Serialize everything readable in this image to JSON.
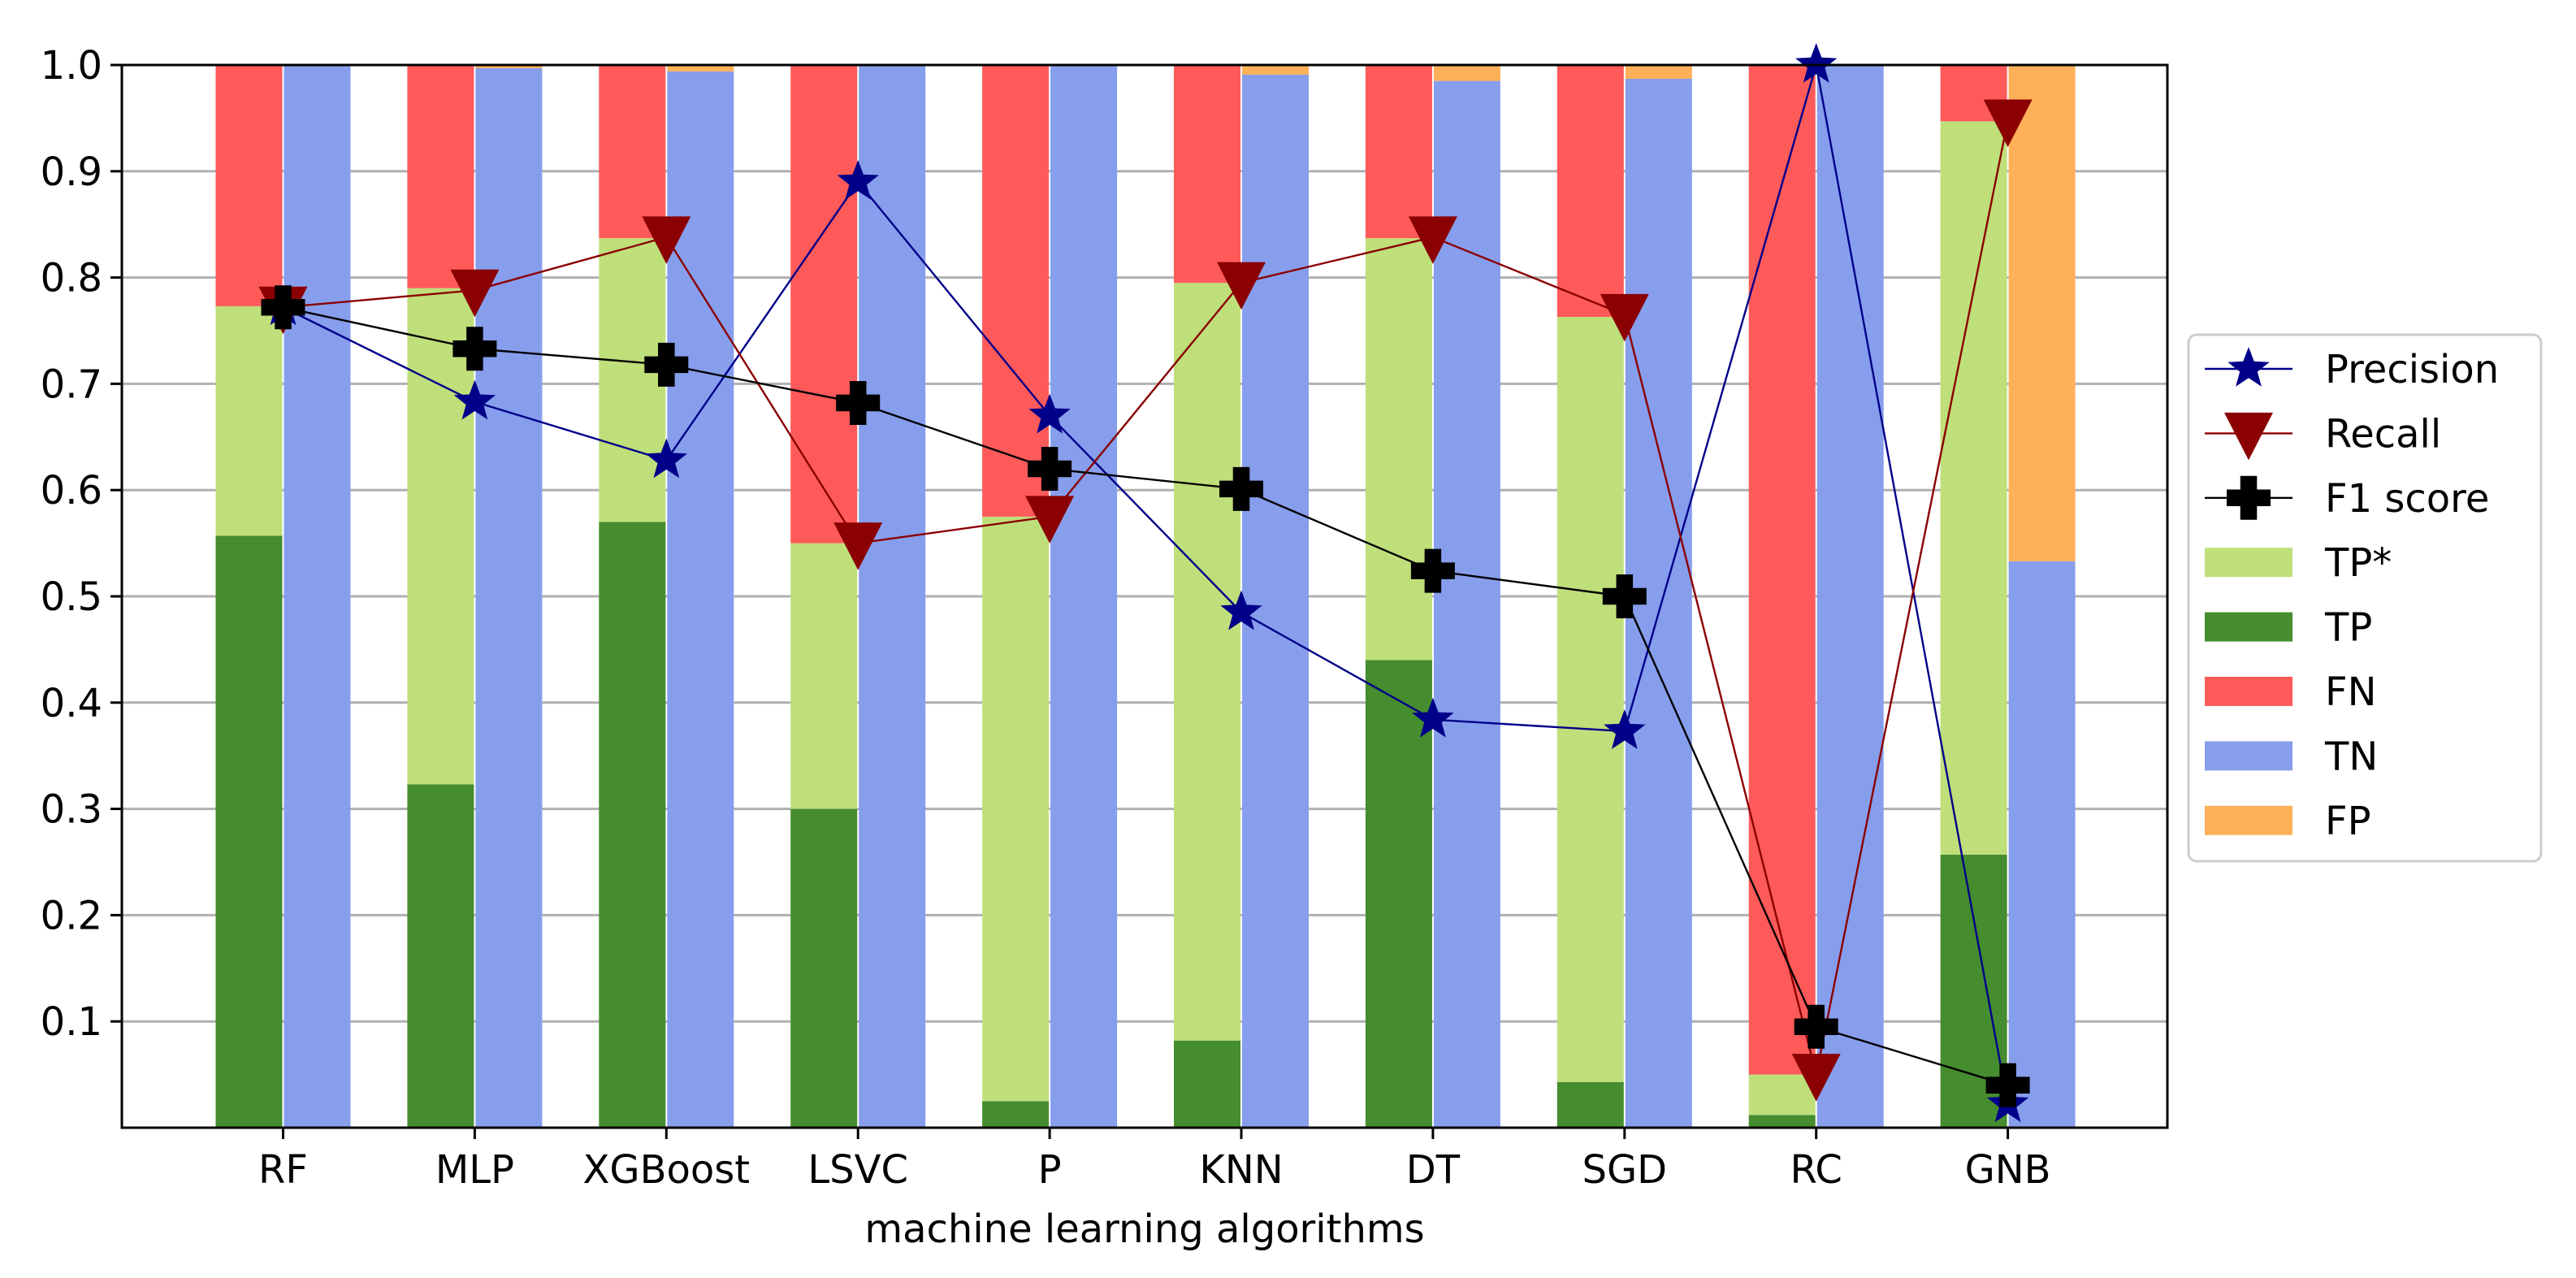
{
  "chart_data": {
    "type": "bar",
    "subtype": "stacked-bar-with-line-overlay",
    "xlabel": "machine learning algorithms",
    "ylabel": "",
    "ylim": [
      0,
      1.0
    ],
    "yticks": [
      "0.1",
      "0.2",
      "0.3",
      "0.4",
      "0.5",
      "0.6",
      "0.7",
      "0.8",
      "0.9",
      "1.0"
    ],
    "grid": "horizontal",
    "legend_position": "right",
    "categories": [
      "RF",
      "MLP",
      "XGBoost",
      "LSVC",
      "P",
      "KNN",
      "DT",
      "SGD",
      "RC",
      "GNB"
    ],
    "positive_bar": {
      "TP": [
        0.557,
        0.323,
        0.57,
        0.3,
        0.025,
        0.082,
        0.44,
        0.043,
        0.012,
        0.257
      ],
      "TP*": [
        0.216,
        0.467,
        0.267,
        0.25,
        0.55,
        0.713,
        0.397,
        0.72,
        0.038,
        0.69
      ],
      "FN": [
        0.227,
        0.21,
        0.163,
        0.45,
        0.425,
        0.205,
        0.163,
        0.237,
        0.95,
        0.053
      ]
    },
    "negative_bar": {
      "TN": [
        1.0,
        0.997,
        0.994,
        1.0,
        0.999,
        0.991,
        0.985,
        0.987,
        1.0,
        0.533
      ],
      "FP": [
        0.0,
        0.003,
        0.006,
        0.0,
        0.001,
        0.009,
        0.015,
        0.013,
        0.0,
        0.467
      ]
    },
    "series": [
      {
        "name": "Precision",
        "values": [
          0.772,
          0.683,
          0.628,
          0.89,
          0.67,
          0.485,
          0.384,
          0.373,
          1.0,
          0.022
        ]
      },
      {
        "name": "Recall",
        "values": [
          0.772,
          0.788,
          0.838,
          0.55,
          0.575,
          0.795,
          0.838,
          0.765,
          0.05,
          0.948
        ]
      },
      {
        "name": "F1 score",
        "values": [
          0.772,
          0.733,
          0.718,
          0.682,
          0.62,
          0.601,
          0.524,
          0.5,
          0.095,
          0.04
        ]
      }
    ],
    "legend": [
      "Precision",
      "Recall",
      "F1 score",
      "TP*",
      "TP",
      "FN",
      "TN",
      "FP"
    ],
    "colors": {
      "TP": "#458d2e",
      "TP*": "#bfdf7b",
      "FN": "#ff5a5a",
      "TN": "#879eec",
      "FP": "#ffb159",
      "Precision": "#000089",
      "Recall": "#8b0000",
      "F1 score": "#000000",
      "grid": "#b0b0b0"
    }
  }
}
